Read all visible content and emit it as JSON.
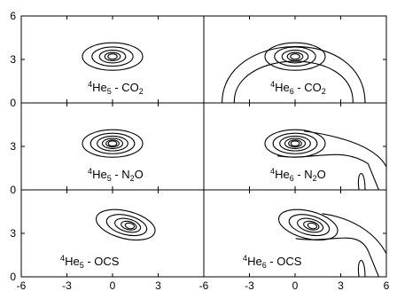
{
  "chart_data": {
    "type": "contour",
    "rows": 3,
    "cols": 2,
    "shared_axes": true,
    "x_ticks": [
      "-6",
      "-3",
      "0",
      "3",
      "-6",
      "-3",
      "0",
      "3",
      "6"
    ],
    "y_ticks": [
      "0",
      "3",
      "6"
    ],
    "xlim": [
      -6,
      6
    ],
    "ylim": [
      0,
      6
    ],
    "panels": [
      {
        "label": {
          "sup": "4",
          "main": "He",
          "n": "5",
          "tail": " - CO",
          "mol_sub": "2"
        },
        "peak": [
          0.0,
          3.2
        ],
        "contour_count": 5,
        "ring": false,
        "tail": false
      },
      {
        "label": {
          "sup": "4",
          "main": "He",
          "n": "6",
          "tail": " - CO",
          "mol_sub": "2"
        },
        "peak": [
          0.0,
          3.2
        ],
        "contour_count": 5,
        "ring": true,
        "tail": false
      },
      {
        "label": {
          "sup": "4",
          "main": "He",
          "n": "5",
          "tail": " - N",
          "mol_sub": "2",
          "after": "O"
        },
        "peak": [
          0.0,
          3.2
        ],
        "contour_count": 6,
        "ring": false,
        "tail": false
      },
      {
        "label": {
          "sup": "4",
          "main": "He",
          "n": "6",
          "tail": " - N",
          "mol_sub": "2",
          "after": "O"
        },
        "peak": [
          0.0,
          3.2
        ],
        "contour_count": 6,
        "ring": false,
        "tail": true
      },
      {
        "label": {
          "sup": "4",
          "main": "He",
          "n": "5",
          "tail": " - OCS",
          "mol_sub": ""
        },
        "peak": [
          1.2,
          3.5
        ],
        "contour_count": 5,
        "ring": false,
        "tail": false
      },
      {
        "label": {
          "sup": "4",
          "main": "He",
          "n": "6",
          "tail": " - OCS",
          "mol_sub": ""
        },
        "peak": [
          1.2,
          3.5
        ],
        "contour_count": 5,
        "ring": false,
        "tail": true
      }
    ]
  }
}
